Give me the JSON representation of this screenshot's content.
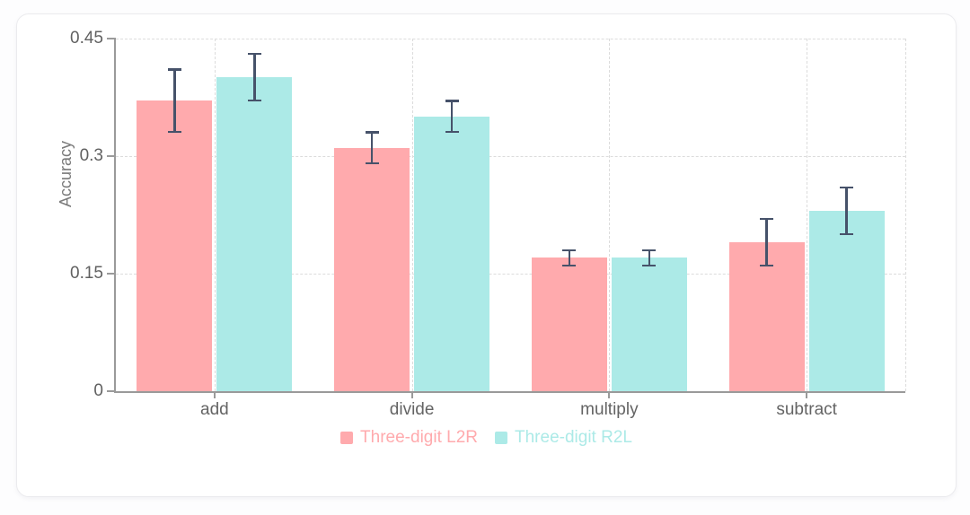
{
  "chart_data": {
    "type": "bar",
    "title": "",
    "xlabel": "",
    "ylabel": "Accuracy",
    "categories": [
      "add",
      "divide",
      "multiply",
      "subtract"
    ],
    "series": [
      {
        "name": "Three-digit L2R",
        "color": "#ffaaad",
        "values": [
          0.37,
          0.31,
          0.17,
          0.19
        ],
        "error_low": [
          0.33,
          0.29,
          0.16,
          0.16
        ],
        "error_high": [
          0.41,
          0.33,
          0.18,
          0.22
        ]
      },
      {
        "name": "Three-digit R2L",
        "color": "#aceae7",
        "values": [
          0.4,
          0.35,
          0.17,
          0.23
        ],
        "error_low": [
          0.37,
          0.33,
          0.16,
          0.2
        ],
        "error_high": [
          0.43,
          0.37,
          0.18,
          0.26
        ]
      }
    ],
    "y_ticks": [
      {
        "value": 0,
        "label": "0"
      },
      {
        "value": 0.15,
        "label": "0.15"
      },
      {
        "value": 0.3,
        "label": "0.3"
      },
      {
        "value": 0.45,
        "label": "0.45"
      }
    ],
    "ylim": [
      0,
      0.45
    ],
    "grid": "dashed",
    "legend_position": "bottom",
    "colors": {
      "error_bar": "#46526a",
      "axis": "#9a9a9a",
      "grid": "#dcdcdc",
      "tick_label": "#616161",
      "axis_label": "#7a7a7a"
    }
  }
}
